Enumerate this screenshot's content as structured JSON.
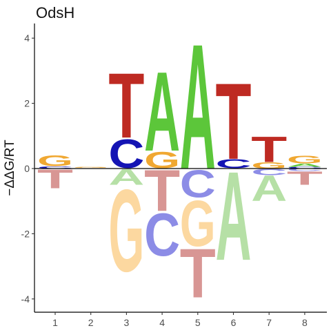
{
  "chart_data": {
    "type": "sequence-logo",
    "title": "OdsH",
    "xlabel": "",
    "ylabel": "−ΔΔG/RT",
    "xticks": [
      "1",
      "2",
      "3",
      "4",
      "5",
      "6",
      "7",
      "8"
    ],
    "yticks": [
      "-4",
      "-2",
      "0",
      "2",
      "4"
    ],
    "ylim": [
      -4.3,
      4.3
    ],
    "grid": false,
    "colors": {
      "A": "#5cc63a",
      "C": "#1414b4",
      "G": "#f0a832",
      "T": "#be2a22",
      "A_neg": "#b6e0a6",
      "C_neg": "#8c8ce6",
      "G_neg": "#fcd8a0",
      "T_neg": "#d89694"
    },
    "positions": [
      {
        "pos": 1,
        "positive": [
          {
            "letter": "C",
            "value": 0.07
          },
          {
            "letter": "G",
            "value": 0.35
          }
        ],
        "negative": [
          {
            "letter": "T",
            "value": 0.6
          }
        ]
      },
      {
        "pos": 2,
        "positive": [
          {
            "letter": "C",
            "value": 0.02
          },
          {
            "letter": "G",
            "value": 0.03
          }
        ],
        "negative": []
      },
      {
        "pos": 3,
        "positive": [
          {
            "letter": "C",
            "value": 0.95
          },
          {
            "letter": "T",
            "value": 2.05
          }
        ],
        "negative": [
          {
            "letter": "A",
            "value": 0.5
          },
          {
            "letter": "G",
            "value": 2.7
          }
        ]
      },
      {
        "pos": 4,
        "positive": [
          {
            "letter": "G",
            "value": 0.55
          },
          {
            "letter": "A",
            "value": 2.5
          }
        ],
        "negative": [
          {
            "letter": "T",
            "value": 1.3
          },
          {
            "letter": "C",
            "value": 1.4
          }
        ]
      },
      {
        "pos": 5,
        "positive": [
          {
            "letter": "A",
            "value": 3.95
          }
        ],
        "negative": [
          {
            "letter": "C",
            "value": 0.9
          },
          {
            "letter": "G",
            "value": 1.5
          },
          {
            "letter": "T",
            "value": 1.55
          }
        ]
      },
      {
        "pos": 6,
        "positive": [
          {
            "letter": "C",
            "value": 0.3
          },
          {
            "letter": "T",
            "value": 2.4
          }
        ],
        "negative": [
          {
            "letter": "A",
            "value": 2.8
          }
        ]
      },
      {
        "pos": 7,
        "positive": [
          {
            "letter": "G",
            "value": 0.2
          },
          {
            "letter": "T",
            "value": 0.8
          }
        ],
        "negative": [
          {
            "letter": "C",
            "value": 0.2
          },
          {
            "letter": "A",
            "value": 0.8
          }
        ]
      },
      {
        "pos": 8,
        "positive": [
          {
            "letter": "C",
            "value": 0.05
          },
          {
            "letter": "A",
            "value": 0.1
          },
          {
            "letter": "G",
            "value": 0.25
          }
        ],
        "negative": [
          {
            "letter": "C",
            "value": 0.08
          },
          {
            "letter": "T",
            "value": 0.42
          }
        ]
      }
    ]
  }
}
